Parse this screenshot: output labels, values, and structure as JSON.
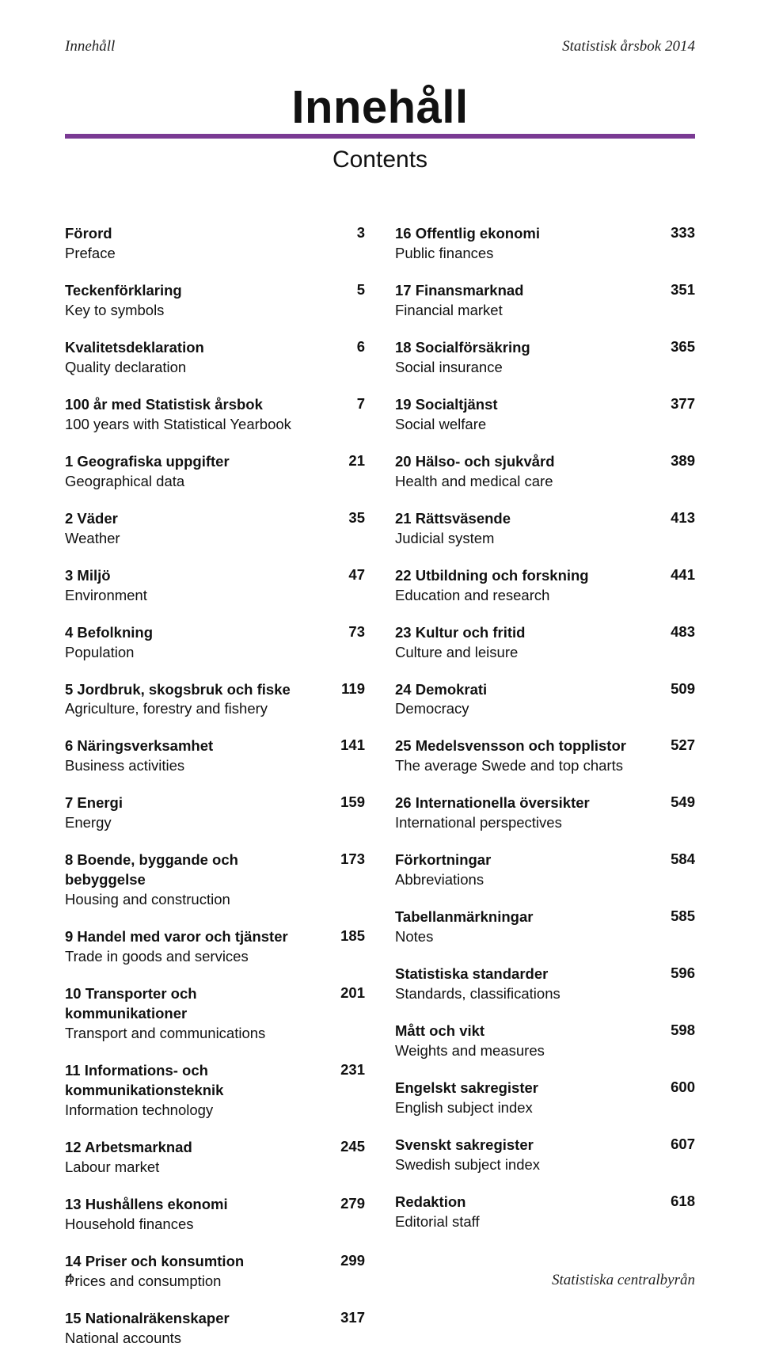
{
  "header": {
    "left": "Innehåll",
    "right": "Statistisk årsbok 2014"
  },
  "title": "Innehåll",
  "subtitle": "Contents",
  "rule_color": "#7a3a93",
  "left_col": [
    {
      "sv": "Förord",
      "en": "Preface",
      "pg": "3"
    },
    {
      "sv": "Teckenförklaring",
      "en": "Key to symbols",
      "pg": "5"
    },
    {
      "sv": "Kvalitetsdeklaration",
      "en": "Quality declaration",
      "pg": "6"
    },
    {
      "sv": "100 år med Statistisk årsbok",
      "en": "100 years with Statistical Yearbook",
      "pg": "7"
    },
    {
      "sv": "1 Geografiska uppgifter",
      "en": "Geographical data",
      "pg": "21"
    },
    {
      "sv": "2 Väder",
      "en": "Weather",
      "pg": "35"
    },
    {
      "sv": "3 Miljö",
      "en": "Environment",
      "pg": "47"
    },
    {
      "sv": "4 Befolkning",
      "en": "Population",
      "pg": "73"
    },
    {
      "sv": "5 Jordbruk, skogsbruk och fiske",
      "en": "Agriculture, forestry and fishery",
      "pg": "119"
    },
    {
      "sv": "6 Näringsverksamhet",
      "en": "Business activities",
      "pg": "141"
    },
    {
      "sv": "7 Energi",
      "en": "Energy",
      "pg": "159"
    },
    {
      "sv": "8 Boende, byggande och bebyggelse",
      "en": "Housing and construction",
      "pg": "173"
    },
    {
      "sv": "9 Handel med varor och tjänster",
      "en": "Trade in goods and services",
      "pg": "185"
    },
    {
      "sv": "10 Transporter och kommunikationer",
      "en": "Transport and communications",
      "pg": "201"
    },
    {
      "sv": "11 Informations- och kommunikationsteknik",
      "en": "Information technology",
      "pg": "231"
    },
    {
      "sv": "12 Arbetsmarknad",
      "en": "Labour market",
      "pg": "245"
    },
    {
      "sv": "13 Hushållens ekonomi",
      "en": "Household finances",
      "pg": "279"
    },
    {
      "sv": "14 Priser och konsumtion",
      "en": "Prices and consumption",
      "pg": "299"
    },
    {
      "sv": "15 Nationalräkenskaper",
      "en": "National accounts",
      "pg": "317"
    }
  ],
  "right_col": [
    {
      "sv": "16 Offentlig ekonomi",
      "en": "Public finances",
      "pg": "333"
    },
    {
      "sv": "17 Finansmarknad",
      "en": "Financial market",
      "pg": "351"
    },
    {
      "sv": "18 Socialförsäkring",
      "en": "Social insurance",
      "pg": "365"
    },
    {
      "sv": "19 Socialtjänst",
      "en": "Social welfare",
      "pg": "377"
    },
    {
      "sv": "20 Hälso- och sjukvård",
      "en": "Health and medical care",
      "pg": "389"
    },
    {
      "sv": "21 Rättsväsende",
      "en": "Judicial system",
      "pg": "413"
    },
    {
      "sv": "22 Utbildning och forskning",
      "en": "Education and research",
      "pg": "441"
    },
    {
      "sv": "23 Kultur och fritid",
      "en": "Culture and leisure",
      "pg": "483"
    },
    {
      "sv": "24 Demokrati",
      "en": "Democracy",
      "pg": "509"
    },
    {
      "sv": "25 Medelsvensson och topplistor",
      "en": "The average Swede and top charts",
      "pg": "527"
    },
    {
      "sv": "26 Internationella översikter",
      "en": "International perspectives",
      "pg": "549"
    },
    {
      "sv": "Förkortningar",
      "en": "Abbreviations",
      "pg": "584"
    },
    {
      "sv": "Tabellanmärkningar",
      "en": "Notes",
      "pg": "585"
    },
    {
      "sv": "Statistiska standarder",
      "en": "Standards, classifications",
      "pg": "596"
    },
    {
      "sv": "Mått och vikt",
      "en": "Weights and measures",
      "pg": "598"
    },
    {
      "sv": "Engelskt sakregister",
      "en": "English subject index",
      "pg": "600"
    },
    {
      "sv": "Svenskt sakregister",
      "en": "Swedish subject index",
      "pg": "607"
    },
    {
      "sv": "Redaktion",
      "en": "Editorial staff",
      "pg": "618"
    }
  ],
  "footer": {
    "page_number": "4",
    "publisher": "Statistiska centralbyrån"
  }
}
